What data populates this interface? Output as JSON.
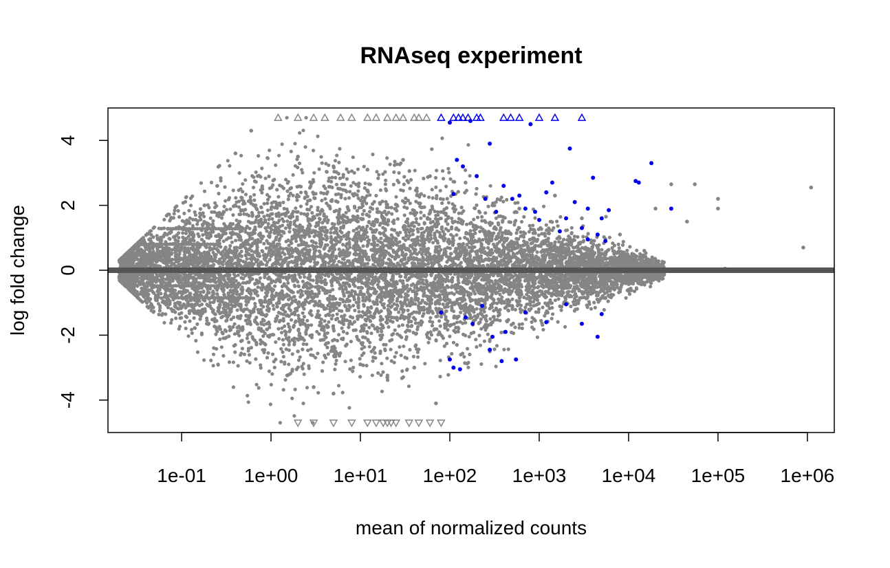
{
  "chart_data": {
    "type": "scatter",
    "title": "RNAseq experiment",
    "xlabel": "mean of normalized counts",
    "ylabel": "log fold change",
    "x_scale": "log10",
    "xlim": [
      0.015,
      2000000
    ],
    "ylim": [
      -5.0,
      5.0
    ],
    "clip_limit": 4.7,
    "reference_line_y": 0,
    "x_ticks": [
      "1e-01",
      "1e+00",
      "1e+01",
      "1e+02",
      "1e+03",
      "1e+04",
      "1e+05",
      "1e+06"
    ],
    "x_tick_values": [
      0.1,
      1,
      10,
      100,
      1000,
      10000,
      100000,
      1000000
    ],
    "y_ticks": [
      "-4",
      "-2",
      "0",
      "2",
      "4"
    ],
    "y_tick_values": [
      -4,
      -2,
      0,
      2,
      4
    ],
    "colors": {
      "not_significant": "#858585",
      "significant": "#0000ee",
      "reference_line": "#555555",
      "frame": "#000000"
    },
    "series": [
      {
        "name": "",
        "color": "#858585",
        "points": [
          [
            0.03,
            0.33
          ],
          [
            0.04,
            0.8
          ],
          [
            0.05,
            -0.48
          ],
          [
            0.07,
            1.28
          ],
          [
            0.08,
            -0.85
          ],
          [
            0.12,
            1.5
          ],
          [
            0.18,
            2.0
          ],
          [
            0.25,
            2.6
          ],
          [
            0.4,
            3.6
          ],
          [
            0.6,
            4.3
          ],
          [
            2.0,
            3.5
          ],
          [
            5.0,
            3.2
          ],
          [
            12.0,
            3.1
          ],
          [
            30.0,
            3.4
          ],
          [
            60.0,
            2.9
          ],
          [
            150.0,
            2.7
          ],
          [
            300.0,
            2.0
          ],
          [
            600.0,
            1.9
          ],
          [
            1500.0,
            2.3
          ],
          [
            3000.0,
            1.6
          ],
          [
            8000.0,
            1.1
          ],
          [
            15000.0,
            0.6
          ],
          [
            20000.0,
            1.9
          ],
          [
            30000.0,
            2.65
          ],
          [
            55000.0,
            2.65
          ],
          [
            45000.0,
            1.5
          ],
          [
            100000.0,
            1.9
          ],
          [
            100000.0,
            2.2
          ],
          [
            120000.0,
            0.05
          ],
          [
            900000.0,
            0.7
          ],
          [
            1100000.0,
            2.55
          ],
          [
            2.0,
            -2.5
          ],
          [
            3.0,
            -3.6
          ],
          [
            5.0,
            -3.8
          ],
          [
            10.0,
            -2.9
          ],
          [
            20.0,
            -3.3
          ],
          [
            40.0,
            -3.0
          ],
          [
            70.0,
            -4.1
          ],
          [
            120.0,
            -2.3
          ],
          [
            300.0,
            -1.6
          ],
          [
            700.0,
            -1.3
          ],
          [
            2000.0,
            -1.0
          ],
          [
            5000.0,
            -0.85
          ],
          [
            10000.0,
            -0.6
          ],
          [
            18000.0,
            -0.2
          ]
        ]
      },
      {
        "name": "",
        "color": "#0000ee",
        "points": [
          [
            100.0,
            4.55
          ],
          [
            110.0,
            2.35
          ],
          [
            120.0,
            3.4
          ],
          [
            140.0,
            3.2
          ],
          [
            170.0,
            4.6
          ],
          [
            200.0,
            2.9
          ],
          [
            250.0,
            2.2
          ],
          [
            280.0,
            3.9
          ],
          [
            330.0,
            1.8
          ],
          [
            400.0,
            2.6
          ],
          [
            500.0,
            2.2
          ],
          [
            600.0,
            2.3
          ],
          [
            700.0,
            1.9
          ],
          [
            800.0,
            4.5
          ],
          [
            900.0,
            1.8
          ],
          [
            1000.0,
            1.55
          ],
          [
            1200.0,
            2.4
          ],
          [
            1400.0,
            2.7
          ],
          [
            1700.0,
            1.2
          ],
          [
            2000.0,
            1.6
          ],
          [
            2200.0,
            3.75
          ],
          [
            2500.0,
            2.1
          ],
          [
            3000.0,
            1.3
          ],
          [
            3500.0,
            1.9
          ],
          [
            4000.0,
            2.85
          ],
          [
            4500.0,
            1.1
          ],
          [
            5000.0,
            1.6
          ],
          [
            6000.0,
            1.85
          ],
          [
            12000.0,
            2.75
          ],
          [
            13000.0,
            2.7
          ],
          [
            18000.0,
            3.3
          ],
          [
            30000.0,
            1.9
          ],
          [
            80.0,
            -1.3
          ],
          [
            100.0,
            -2.75
          ],
          [
            110.0,
            -3.0
          ],
          [
            130.0,
            -3.05
          ],
          [
            150.0,
            -1.45
          ],
          [
            180.0,
            -1.65
          ],
          [
            230.0,
            -1.1
          ],
          [
            280.0,
            -2.45
          ],
          [
            300.0,
            -2.05
          ],
          [
            380.0,
            -2.8
          ],
          [
            420.0,
            -1.9
          ],
          [
            550.0,
            -2.75
          ],
          [
            700.0,
            -1.3
          ],
          [
            1200.0,
            -1.6
          ],
          [
            2000.0,
            -1.05
          ],
          [
            3000.0,
            -1.65
          ],
          [
            4500.0,
            -2.05
          ],
          [
            5000.0,
            -1.35
          ],
          [
            3500.0,
            0.95
          ],
          [
            5500.0,
            0.9
          ]
        ]
      }
    ],
    "clipped_up": {
      "color_gray": "#858585",
      "color_blue": "#0000ee",
      "gray_x": [
        1.2,
        2,
        3,
        4,
        6,
        8,
        12,
        15,
        20,
        25,
        30,
        40,
        45,
        55
      ],
      "blue_x": [
        80,
        110,
        125,
        140,
        160,
        200,
        220,
        400,
        480,
        600,
        1000,
        1500,
        3000
      ]
    },
    "clipped_down": {
      "color_gray": "#858585",
      "gray_x": [
        2,
        3,
        5,
        8,
        12,
        15,
        18,
        20,
        22,
        25,
        35,
        45,
        60,
        80
      ]
    }
  }
}
